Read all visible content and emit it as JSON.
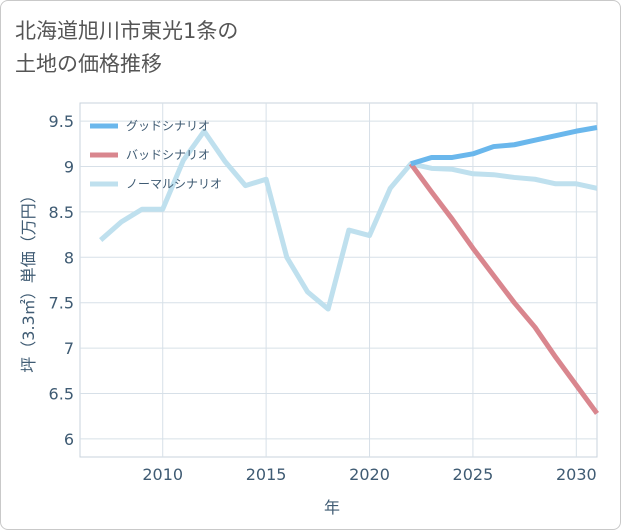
{
  "title_lines": [
    "北海道旭川市東光1条の",
    "土地の価格推移"
  ],
  "chart_data": {
    "type": "line",
    "xlabel": "年",
    "ylabel": "坪（3.3㎡）単価（万円）",
    "xlim": [
      2006,
      2031
    ],
    "ylim": [
      5.8,
      9.7
    ],
    "xticks": [
      2010,
      2015,
      2020,
      2025,
      2030
    ],
    "yticks": [
      6,
      6.5,
      7,
      7.5,
      8,
      8.5,
      9,
      9.5
    ],
    "ytick_labels": [
      "6",
      "6.5",
      "7",
      "7.5",
      "8",
      "8.5",
      "9",
      "9.5"
    ],
    "legend_position": "top-left",
    "grid": true,
    "series": [
      {
        "name": "グッドシナリオ",
        "color": "#6ab7ec",
        "x": [
          2022,
          2023,
          2024,
          2025,
          2026,
          2027,
          2028,
          2029,
          2030,
          2031
        ],
        "y": [
          9.03,
          9.1,
          9.1,
          9.14,
          9.22,
          9.24,
          9.29,
          9.34,
          9.39,
          9.43
        ]
      },
      {
        "name": "バッドシナリオ",
        "color": "#d9868e",
        "x": [
          2022,
          2023,
          2024,
          2025,
          2026,
          2027,
          2028,
          2029,
          2030,
          2031
        ],
        "y": [
          9.03,
          8.72,
          8.42,
          8.1,
          7.8,
          7.5,
          7.23,
          6.9,
          6.59,
          6.28
        ]
      },
      {
        "name": "ノーマルシナリオ",
        "color": "#bfe0ee",
        "x": [
          2007,
          2008,
          2009,
          2010,
          2011,
          2012,
          2013,
          2014,
          2015,
          2016,
          2017,
          2018,
          2019,
          2020,
          2021,
          2022,
          2023,
          2024,
          2025,
          2026,
          2027,
          2028,
          2029,
          2030,
          2031
        ],
        "y": [
          8.19,
          8.39,
          8.53,
          8.53,
          9.07,
          9.39,
          9.06,
          8.79,
          8.86,
          8.0,
          7.62,
          7.43,
          8.3,
          8.24,
          8.76,
          9.03,
          8.98,
          8.97,
          8.92,
          8.91,
          8.88,
          8.86,
          8.81,
          8.81,
          8.76
        ]
      }
    ]
  }
}
